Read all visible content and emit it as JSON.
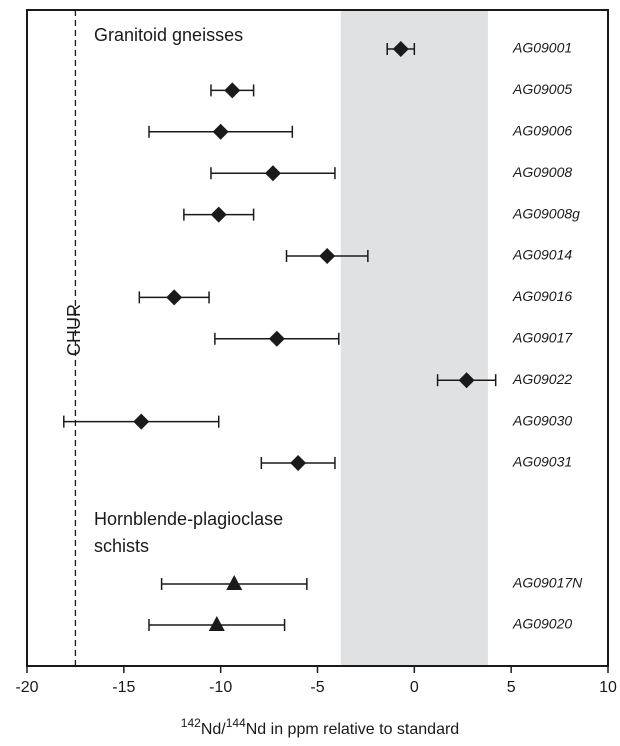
{
  "chart_data": {
    "type": "errorbar",
    "xlim": [
      -20,
      10
    ],
    "xticks": [
      -20,
      -15,
      -10,
      -5,
      0,
      5,
      10
    ],
    "x_label": [
      "142",
      "Nd/",
      "144",
      "Nd in ppm relative to standard"
    ],
    "shaded_xrange": [
      -3.8,
      3.8
    ],
    "shade_color": "#e0e1e3",
    "reference_line": {
      "value": -17.5,
      "label": "CHUR"
    },
    "series": [
      {
        "marker": "diamond",
        "color": "#1a1a1a",
        "group_label": [
          "Granitoid gneisses"
        ],
        "categories": [
          "AG09001",
          "AG09005",
          "AG09006",
          "AG09008",
          "AG09008g",
          "AG09014",
          "AG09016",
          "AG09017",
          "AG09022",
          "AG09030",
          "AG09031"
        ],
        "values": [
          -0.7,
          -9.4,
          -10.0,
          -7.3,
          -10.1,
          -4.5,
          -12.4,
          -7.1,
          2.7,
          -14.1,
          -6.0
        ],
        "errors": [
          0.7,
          1.1,
          3.7,
          3.2,
          1.8,
          2.1,
          1.8,
          3.2,
          1.5,
          4.0,
          1.9
        ]
      },
      {
        "marker": "triangle",
        "color": "#1a1a1a",
        "group_label": [
          "Hornblende-plagioclase",
          "schists"
        ],
        "categories": [
          "AG09017N",
          "AG09020"
        ],
        "values": [
          -9.3,
          -10.2
        ],
        "errors": [
          3.75,
          3.5
        ]
      }
    ]
  }
}
